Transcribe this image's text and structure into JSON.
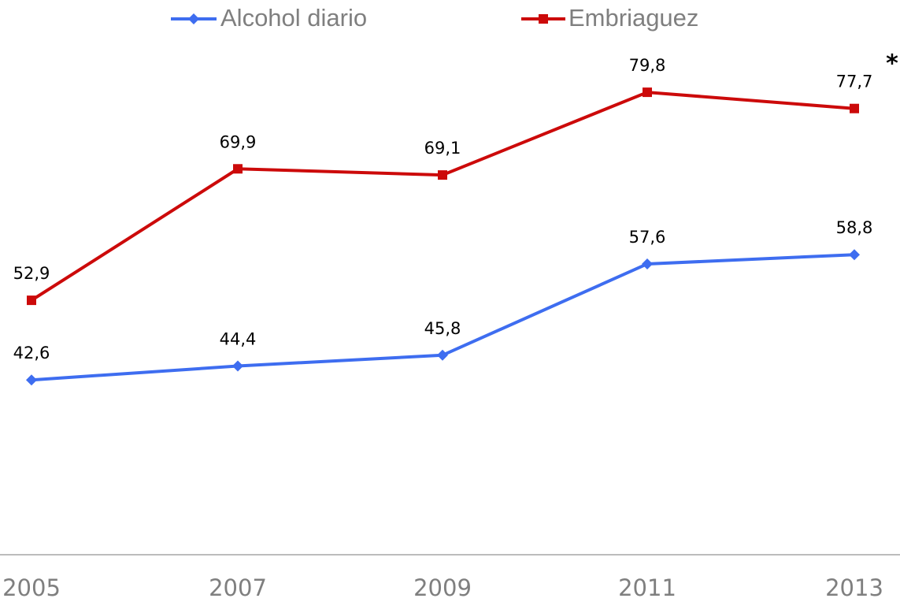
{
  "chart_data": {
    "type": "line",
    "categories": [
      "2005",
      "2007",
      "2009",
      "2011",
      "2013"
    ],
    "series": [
      {
        "name": "Alcohol diario",
        "color": "#3e6df0",
        "values": [
          42.6,
          44.4,
          45.8,
          57.6,
          58.8
        ],
        "value_labels": [
          "42,6",
          "44,4",
          "45,8",
          "57,6",
          "58,8"
        ]
      },
      {
        "name": "Embriaguez",
        "color": "#cc0a0a",
        "values": [
          52.9,
          69.9,
          69.1,
          79.8,
          77.7
        ],
        "value_labels": [
          "52,9",
          "69,9",
          "69,1",
          "79,8",
          "77,7"
        ]
      }
    ],
    "annotation": "*",
    "ylim": [
      20,
      90
    ],
    "legend": "top"
  }
}
